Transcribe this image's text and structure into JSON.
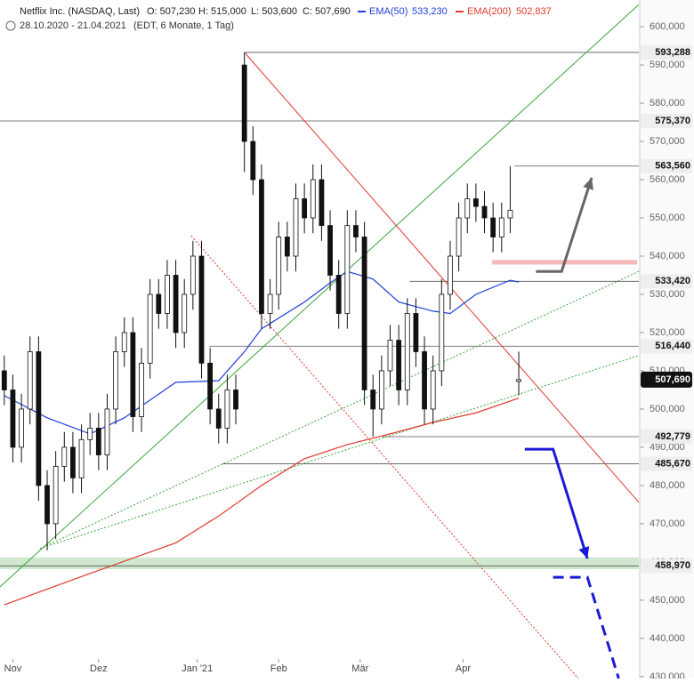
{
  "chart_data": {
    "type": "candlestick",
    "title": "Netflix Inc. (NASDAQ, Last)",
    "ohlc_labels": [
      "O: 507,230",
      "H: 515,000",
      "L: 503,600",
      "C: 507,690"
    ],
    "date_range": "28.10.2020 - 21.04.2021",
    "period_note": "(EDT, 6 Monate, 1 Tag)",
    "xlim": [
      -1,
      148
    ],
    "ylim": [
      429.5,
      607
    ],
    "xticks": [
      {
        "value": 2,
        "label": "Nov"
      },
      {
        "value": 22,
        "label": "Dez"
      },
      {
        "value": 45,
        "label": "Jan '21"
      },
      {
        "value": 64,
        "label": "Feb"
      },
      {
        "value": 83,
        "label": "Mär"
      },
      {
        "value": 107,
        "label": "Apr"
      }
    ],
    "yticks": [
      {
        "value": 600,
        "label": "600,000"
      },
      {
        "value": 590,
        "label": "590,000"
      },
      {
        "value": 580,
        "label": "580,000"
      },
      {
        "value": 570,
        "label": "570,000"
      },
      {
        "value": 560,
        "label": "560,000"
      },
      {
        "value": 550,
        "label": "550,000"
      },
      {
        "value": 540,
        "label": "540,000"
      },
      {
        "value": 530,
        "label": "530,000"
      },
      {
        "value": 520,
        "label": "520,000"
      },
      {
        "value": 510,
        "label": "510,000"
      },
      {
        "value": 500,
        "label": "500,000"
      },
      {
        "value": 490,
        "label": "490,000"
      },
      {
        "value": 480,
        "label": "480,000"
      },
      {
        "value": 470,
        "label": "470,000"
      },
      {
        "value": 460,
        "label": "460,000"
      },
      {
        "value": 450,
        "label": "450,000"
      },
      {
        "value": 440,
        "label": "440,000"
      },
      {
        "value": 430,
        "label": "430,000"
      }
    ],
    "candles": {
      "x": [
        0,
        2,
        4,
        6,
        8,
        10,
        12,
        14,
        16,
        18,
        20,
        22,
        24,
        26,
        28,
        30,
        32,
        34,
        36,
        38,
        40,
        42,
        44,
        46,
        48,
        50,
        52,
        54,
        56,
        58,
        60,
        62,
        64,
        66,
        68,
        70,
        72,
        74,
        76,
        78,
        80,
        82,
        84,
        86,
        88,
        90,
        92,
        94,
        96,
        98,
        100,
        102,
        104,
        106,
        108,
        110,
        112,
        114,
        116,
        118,
        120
      ],
      "open": [
        510,
        505,
        490,
        500,
        515,
        480,
        470,
        485,
        490,
        482,
        492,
        495,
        488,
        500,
        515,
        520,
        498,
        512,
        530,
        525,
        535,
        520,
        530,
        540,
        512,
        500,
        495,
        505,
        590,
        570,
        560,
        525,
        530,
        545,
        540,
        555,
        550,
        560,
        548,
        535,
        525,
        548,
        545,
        505,
        500,
        510,
        518,
        505,
        525,
        515,
        500,
        510,
        530,
        540,
        550,
        555,
        553,
        550,
        545,
        550,
        507.23
      ],
      "high": [
        514,
        509,
        504,
        519,
        519,
        484,
        489,
        494,
        494,
        496,
        499,
        499,
        504,
        519,
        524,
        524,
        516,
        534,
        534,
        539,
        539,
        534,
        544,
        544,
        516,
        504,
        509,
        509,
        593.29,
        574,
        564,
        534,
        549,
        549,
        559,
        559,
        564,
        564,
        552,
        539,
        552,
        552,
        549,
        509,
        514,
        522,
        522,
        529,
        529,
        519,
        514,
        534,
        544,
        554,
        559,
        559,
        557,
        554,
        554,
        563.56,
        515
      ],
      "low": [
        501,
        486,
        486,
        496,
        476,
        463,
        466,
        481,
        478,
        478,
        488,
        484,
        484,
        496,
        511,
        494,
        494,
        508,
        521,
        521,
        516,
        516,
        526,
        508,
        496,
        491,
        491,
        496,
        562,
        556,
        521,
        521,
        526,
        536,
        536,
        546,
        546,
        544,
        531,
        521,
        521,
        541,
        501,
        492.78,
        496,
        506,
        501,
        501,
        511,
        496,
        496,
        506,
        526,
        536,
        546,
        549,
        546,
        541,
        541,
        546,
        503.6
      ],
      "close": [
        505,
        490,
        500,
        515,
        480,
        470,
        485,
        490,
        482,
        492,
        495,
        488,
        500,
        515,
        520,
        498,
        512,
        530,
        525,
        535,
        520,
        530,
        540,
        512,
        500,
        495,
        505,
        500,
        570,
        560,
        525,
        530,
        545,
        540,
        555,
        550,
        560,
        548,
        535,
        525,
        548,
        545,
        505,
        500,
        510,
        518,
        505,
        525,
        515,
        500,
        510,
        530,
        540,
        550,
        555,
        553,
        550,
        545,
        550,
        552,
        507.69
      ],
      "up_color": "#ffffff",
      "down_color": "#111111",
      "edge_color": "#111111"
    },
    "series": [
      {
        "name": "EMA(50)",
        "value_label": "533,230",
        "color": "#1f3fd6",
        "x": [
          0,
          10,
          20,
          28,
          40,
          50,
          56,
          60,
          70,
          76,
          80,
          86,
          92,
          100,
          104,
          110,
          118,
          120
        ],
        "values": [
          503.5,
          497.7,
          493.5,
          497.7,
          507,
          507.4,
          515,
          521,
          528,
          533,
          536,
          534,
          528,
          525.6,
          525,
          530,
          533.7,
          533.23
        ]
      },
      {
        "name": "EMA(200)",
        "value_label": "502,837",
        "color": "#e0392b",
        "x": [
          0,
          20,
          40,
          50,
          60,
          70,
          80,
          90,
          100,
          110,
          120
        ],
        "values": [
          448.8,
          457,
          465,
          472,
          480,
          487,
          490.7,
          493.5,
          496.5,
          499,
          502.84
        ]
      }
    ],
    "levels": [
      {
        "value": 593.288,
        "label": "593,288",
        "from": 56
      },
      {
        "value": 575.37,
        "label": "575,370",
        "from": -1
      },
      {
        "value": 563.56,
        "label": "563,560",
        "from": 119
      },
      {
        "value": 533.42,
        "label": "533,420",
        "from": 94.5
      },
      {
        "value": 516.44,
        "label": "516,440",
        "from": 47.8
      },
      {
        "value": 492.779,
        "label": "492,779",
        "from": 88.2
      },
      {
        "value": 485.67,
        "label": "485,670",
        "from": 50.9
      },
      {
        "value": 458.97,
        "label": "458,970",
        "from": -1
      }
    ],
    "current_price": {
      "value": 507.69,
      "label": "507,690"
    },
    "bands": [
      {
        "y": [
          458.1,
          461.2
        ],
        "x": [
          -1,
          148
        ],
        "color": "#cfe8cf"
      },
      {
        "y": [
          537.8,
          539
        ],
        "x": [
          113.8,
          147.6
        ],
        "color": "#f4b8b8"
      }
    ],
    "lines": [
      {
        "x": [
          -1,
          148
        ],
        "y": [
          453.5,
          605.8
        ],
        "color": "#3aa63a",
        "dash": false
      },
      {
        "x": [
          56,
          148
        ],
        "y": [
          593.3,
          475.6
        ],
        "color": "#e0392b",
        "dash": false
      },
      {
        "x": [
          43.6,
          133.9
        ],
        "y": [
          545.3,
          429.5
        ],
        "color": "#e0392b",
        "dash": true
      },
      {
        "x": [
          8.3,
          148
        ],
        "y": [
          463.5,
          536
        ],
        "color": "#3aa63a",
        "dash": true
      },
      {
        "x": [
          8.3,
          148
        ],
        "y": [
          463.5,
          514
        ],
        "color": "#3aa63a",
        "dash": true
      }
    ],
    "arrows": [
      {
        "x": [
          124,
          130,
          137
        ],
        "y": [
          536,
          536,
          560.5
        ],
        "color": "#666666",
        "dash": false
      },
      {
        "x": [
          121.4,
          128,
          136
        ],
        "y": [
          489.5,
          489.5,
          460.9
        ],
        "color": "#1a1ad6",
        "dash": false
      },
      {
        "x": [
          128,
          136,
          143.3
        ],
        "y": [
          456,
          456,
          429.5
        ],
        "color": "#1a1ad6",
        "dash": true
      }
    ]
  }
}
